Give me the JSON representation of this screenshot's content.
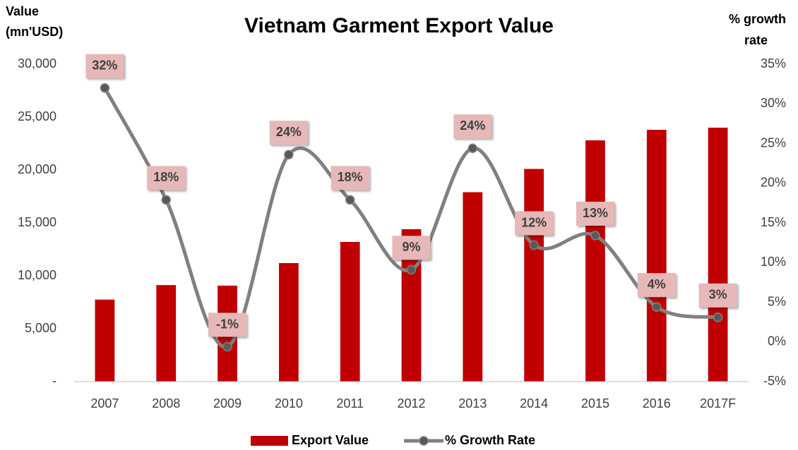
{
  "chart_data": {
    "type": "bar_line",
    "title": "Vietnam Garment Export Value",
    "ylabel": [
      "Value",
      "(mn'USD)"
    ],
    "y2label": [
      "% growth",
      "rate"
    ],
    "categories": [
      "2007",
      "2008",
      "2009",
      "2010",
      "2011",
      "2012",
      "2013",
      "2014",
      "2015",
      "2016",
      "2017F"
    ],
    "series": [
      {
        "name": "Export Value",
        "type": "bar",
        "color": "#c00000",
        "values": [
          7750,
          9120,
          9070,
          11200,
          13200,
          14400,
          17900,
          20100,
          22800,
          23800,
          24000
        ]
      },
      {
        "name": "% Growth Rate",
        "type": "line",
        "axis": "y2",
        "color": "#808080",
        "marker_color": "#595959",
        "values": [
          32,
          17.9,
          -0.6,
          23.6,
          17.9,
          9.1,
          24.4,
          12.2,
          13.4,
          4.4,
          3.1
        ],
        "value_labels": [
          "32%",
          "18%",
          "-1%",
          "24%",
          "18%",
          "9%",
          "24%",
          "12%",
          "13%",
          "4%",
          "3%"
        ]
      }
    ],
    "ylim": [
      0,
      30000
    ],
    "yticks": [
      {
        "value": 0,
        "label": "-"
      },
      {
        "value": 5000,
        "label": "5,000"
      },
      {
        "value": 10000,
        "label": "10,000"
      },
      {
        "value": 15000,
        "label": "15,000"
      },
      {
        "value": 20000,
        "label": "20,000"
      },
      {
        "value": 25000,
        "label": "25,000"
      },
      {
        "value": 30000,
        "label": "30,000"
      }
    ],
    "y2lim": [
      -5,
      35
    ],
    "y2ticks": [
      {
        "value": -5,
        "label": "-5%"
      },
      {
        "value": 0,
        "label": "0%"
      },
      {
        "value": 5,
        "label": "5%"
      },
      {
        "value": 10,
        "label": "10%"
      },
      {
        "value": 15,
        "label": "15%"
      },
      {
        "value": 20,
        "label": "20%"
      },
      {
        "value": 25,
        "label": "25%"
      },
      {
        "value": 30,
        "label": "30%"
      },
      {
        "value": 35,
        "label": "35%"
      }
    ],
    "grid": false,
    "legend": "bottom"
  }
}
